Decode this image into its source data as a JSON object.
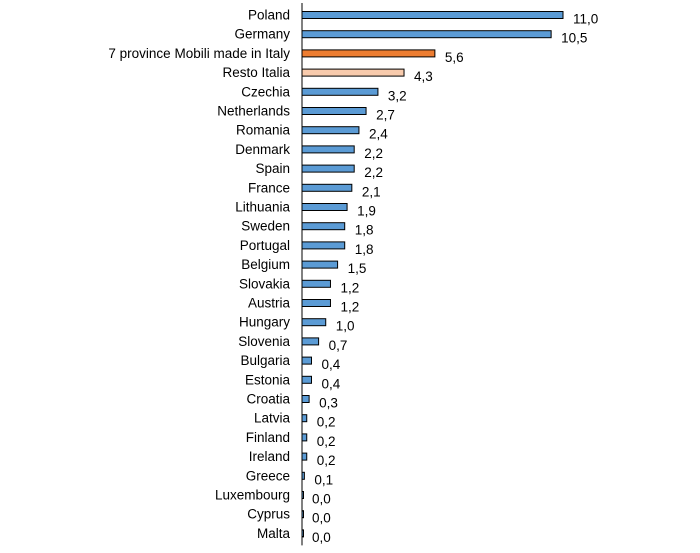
{
  "chart_data": {
    "type": "bar",
    "orientation": "horizontal",
    "categories": [
      "Poland",
      "Germany",
      "7 province Mobili made in Italy",
      "Resto Italia",
      "Czechia",
      "Netherlands",
      "Romania",
      "Denmark",
      "Spain",
      "France",
      "Lithuania",
      "Sweden",
      "Portugal",
      "Belgium",
      "Slovakia",
      "Austria",
      "Hungary",
      "Slovenia",
      "Bulgaria",
      "Estonia",
      "Croatia",
      "Latvia",
      "Finland",
      "Ireland",
      "Greece",
      "Luxembourg",
      "Cyprus",
      "Malta"
    ],
    "values": [
      11.0,
      10.5,
      5.6,
      4.3,
      3.2,
      2.7,
      2.4,
      2.2,
      2.2,
      2.1,
      1.9,
      1.8,
      1.8,
      1.5,
      1.2,
      1.2,
      1.0,
      0.7,
      0.4,
      0.4,
      0.3,
      0.2,
      0.2,
      0.2,
      0.1,
      0.0,
      0.0,
      0.0
    ],
    "value_labels": [
      "11,0",
      "10,5",
      "5,6",
      "4,3",
      "3,2",
      "2,7",
      "2,4",
      "2,2",
      "2,2",
      "2,1",
      "1,9",
      "1,8",
      "1,8",
      "1,5",
      "1,2",
      "1,2",
      "1,0",
      "0,7",
      "0,4",
      "0,4",
      "0,3",
      "0,2",
      "0,2",
      "0,2",
      "0,1",
      "0,0",
      "0,0",
      "0,0"
    ],
    "bar_colors": [
      "#5B9BD5",
      "#5B9BD5",
      "#ED7D31",
      "#F8CBAD",
      "#5B9BD5",
      "#5B9BD5",
      "#5B9BD5",
      "#5B9BD5",
      "#5B9BD5",
      "#5B9BD5",
      "#5B9BD5",
      "#5B9BD5",
      "#5B9BD5",
      "#5B9BD5",
      "#5B9BD5",
      "#5B9BD5",
      "#5B9BD5",
      "#5B9BD5",
      "#5B9BD5",
      "#5B9BD5",
      "#5B9BD5",
      "#5B9BD5",
      "#5B9BD5",
      "#5B9BD5",
      "#5B9BD5",
      "#5B9BD5",
      "#5B9BD5",
      "#5B9BD5"
    ],
    "xlim": [
      0,
      11.0
    ],
    "grid": false,
    "legend": "none"
  }
}
